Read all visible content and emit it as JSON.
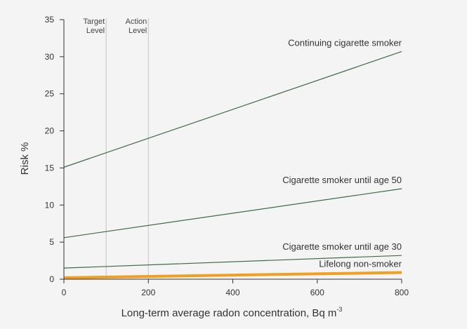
{
  "chart_data": {
    "type": "line",
    "xlabel": "Long-term average radon concentration, Bq m",
    "xlabel_superscript": "-3",
    "ylabel": "Risk %",
    "xlim": [
      0,
      800
    ],
    "ylim": [
      0,
      35
    ],
    "x_ticks": [
      0,
      200,
      400,
      600,
      800
    ],
    "y_ticks": [
      0,
      5,
      10,
      15,
      20,
      25,
      30,
      35
    ],
    "grid": false,
    "reference_lines": [
      {
        "x": 100,
        "label_line1": "Target",
        "label_line2": "Level"
      },
      {
        "x": 200,
        "label_line1": "Action",
        "label_line2": "Level"
      }
    ],
    "series": [
      {
        "name": "Continuing cigarette smoker",
        "x": [
          0,
          800
        ],
        "values": [
          15.1,
          30.7
        ],
        "color": "#3d6b45",
        "width": 1.2
      },
      {
        "name": "Cigarette smoker until age 50",
        "x": [
          0,
          800
        ],
        "values": [
          5.6,
          12.2
        ],
        "color": "#3d6b45",
        "width": 1.2
      },
      {
        "name": "Cigarette smoker until age 30",
        "x": [
          0,
          800
        ],
        "values": [
          1.5,
          3.2
        ],
        "color": "#3d6b45",
        "width": 1.2
      },
      {
        "name": "Lifelong non-smoker",
        "x": [
          0,
          800
        ],
        "values": [
          0.2,
          0.9
        ],
        "color": "#f0a020",
        "width": 4
      }
    ]
  }
}
